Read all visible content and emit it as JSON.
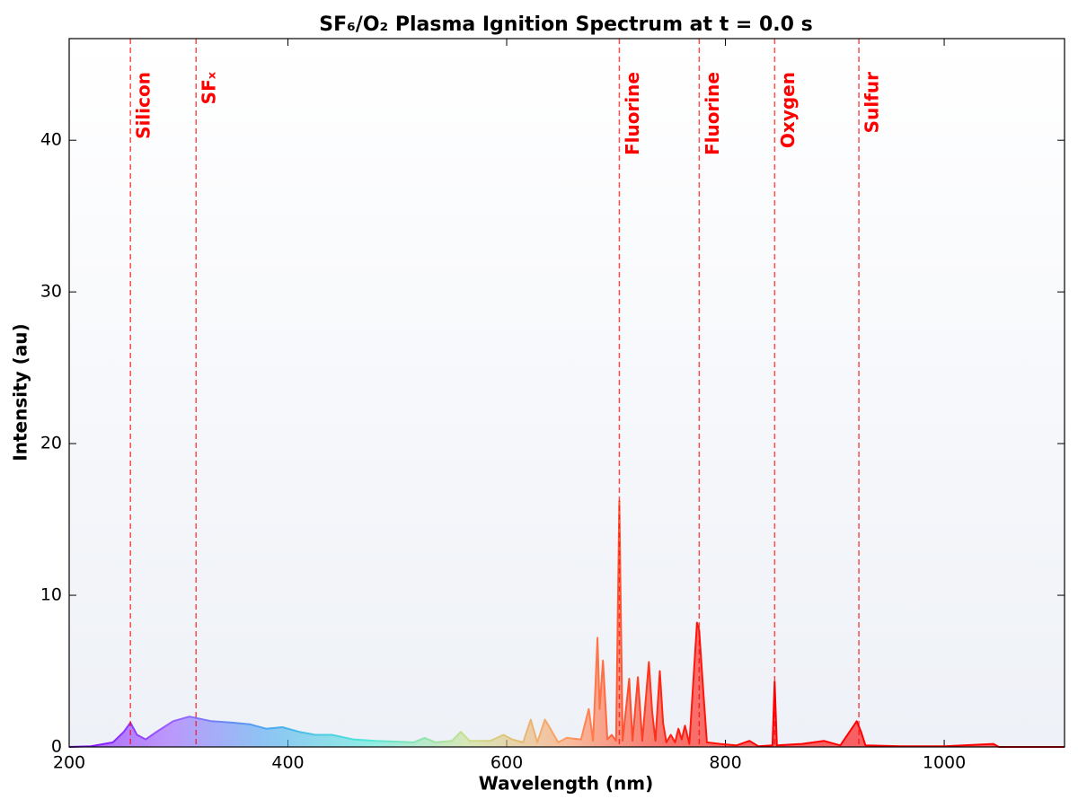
{
  "chart_data": {
    "type": "line",
    "title": "SF₆/O₂ Plasma Ignition Spectrum at t = 0.0 s",
    "x_label": "Wavelength (nm)",
    "y_label": "Intensity (au)",
    "x": [
      200,
      220,
      240,
      250,
      256,
      262,
      270,
      280,
      295,
      310,
      330,
      350,
      365,
      380,
      395,
      410,
      425,
      440,
      460,
      480,
      500,
      515,
      525,
      535,
      550,
      558,
      566,
      585,
      597,
      605,
      615,
      622,
      628,
      635,
      640,
      647,
      655,
      668,
      675,
      679,
      683,
      685,
      688,
      692,
      696,
      700,
      703,
      706,
      712,
      715,
      720,
      724,
      730,
      733,
      736,
      740,
      743,
      746,
      750,
      754,
      757,
      760,
      763,
      767,
      774,
      776,
      778,
      780,
      783,
      795,
      810,
      822,
      830,
      843,
      845,
      847,
      870,
      890,
      905,
      920,
      924,
      928,
      960,
      1000,
      1045,
      1050,
      1110
    ],
    "series": [
      {
        "values": [
          0,
          0.05,
          0.3,
          1.0,
          1.6,
          0.8,
          0.5,
          1.0,
          1.7,
          2.0,
          1.7,
          1.6,
          1.5,
          1.2,
          1.3,
          1.0,
          0.8,
          0.8,
          0.5,
          0.4,
          0.35,
          0.3,
          0.6,
          0.3,
          0.4,
          1.0,
          0.4,
          0.4,
          0.8,
          0.5,
          0.3,
          1.8,
          0.3,
          1.8,
          1.2,
          0.3,
          0.6,
          0.5,
          2.5,
          0.4,
          7.2,
          2.5,
          5.7,
          0.5,
          0.8,
          0.4,
          16.2,
          0.4,
          4.5,
          0.4,
          4.6,
          0.4,
          5.6,
          2.3,
          0.4,
          5.0,
          1.6,
          0.3,
          0.8,
          0.3,
          1.2,
          0.5,
          1.4,
          0.2,
          8.2,
          7.7,
          5.5,
          3.4,
          0.3,
          0.2,
          0.1,
          0.4,
          0.05,
          0.1,
          4.3,
          0.1,
          0.2,
          0.4,
          0.1,
          1.7,
          1.0,
          0.1,
          0.05,
          0.05,
          0.2,
          0,
          0
        ]
      }
    ],
    "colors": [
      "#8000ff",
      "#9a5cff",
      "#4aa8f0",
      "#50e8d8",
      "#c8e08c",
      "#ff9a60",
      "#ff2010",
      "#ff0000",
      "#ff0000",
      "#ff0000",
      "#ff0000"
    ],
    "xlim": [
      200,
      1110
    ],
    "xticks": [
      200,
      400,
      600,
      800,
      1000
    ],
    "ylim": [
      0,
      46.7
    ],
    "yticks": [
      0,
      10,
      20,
      30,
      40
    ],
    "annotations": [
      {
        "x": 256,
        "text": "Silicon"
      },
      {
        "x": 316,
        "text": "SFₓ"
      },
      {
        "x": 703,
        "text": "Fluorine"
      },
      {
        "x": 776,
        "text": "Fluorine"
      },
      {
        "x": 845,
        "text": "Oxygen"
      },
      {
        "x": 922,
        "text": "Sulfur"
      }
    ],
    "annotation_color": "#ff0000"
  }
}
